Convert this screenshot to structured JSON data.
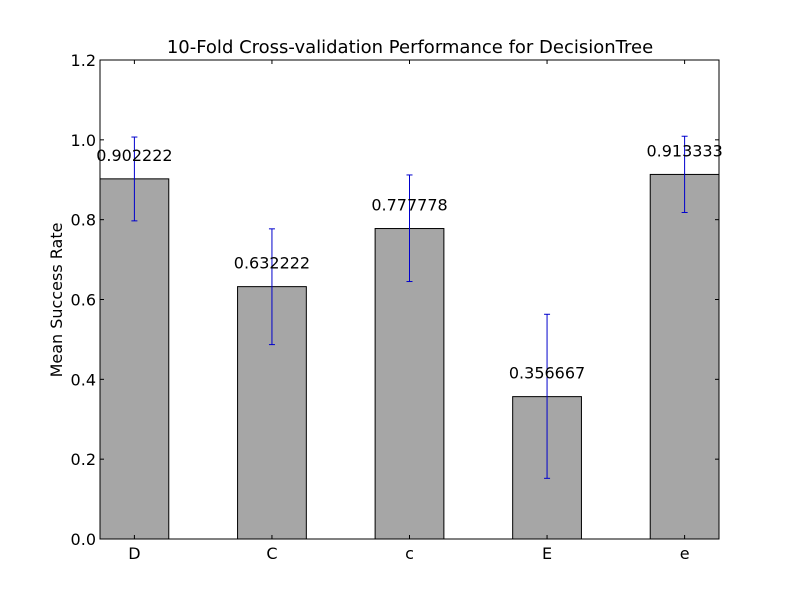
{
  "chart_data": {
    "type": "bar",
    "title": "10-Fold Cross-validation Performance for DecisionTree",
    "xlabel": "",
    "ylabel": "Mean Success Rate",
    "categories": [
      "D",
      "C",
      "c",
      "E",
      "e"
    ],
    "values": [
      0.902222,
      0.632222,
      0.777778,
      0.356667,
      0.913333
    ],
    "value_labels": [
      "0.902222",
      "0.632222",
      "0.777778",
      "0.356667",
      "0.913333"
    ],
    "error_low": [
      0.797,
      0.487,
      0.645,
      0.152,
      0.818
    ],
    "error_high": [
      1.007,
      0.777,
      0.912,
      0.563,
      1.009
    ],
    "ylim": [
      0,
      1.2
    ],
    "yticks": [
      0.0,
      0.2,
      0.4,
      0.6,
      0.8,
      1.0,
      1.2
    ],
    "ytick_labels": [
      "0.0",
      "0.2",
      "0.4",
      "0.6",
      "0.8",
      "1.0",
      "1.2"
    ],
    "grid": false,
    "colors": {
      "bar": "#a6a6a6",
      "error": "#0000cc",
      "axis": "#000000"
    }
  }
}
